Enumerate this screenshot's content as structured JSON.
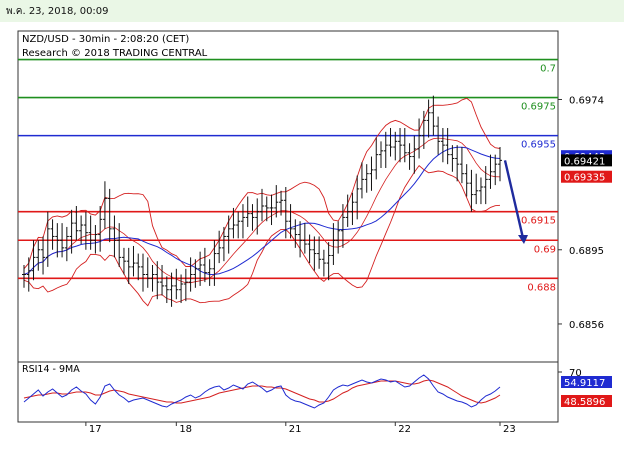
{
  "timestamp": "พ.ค. 23, 2018, 00:09",
  "chart_data": {
    "type": "line",
    "title": "NZD/USD - 30min - 2:08:20 (CET)",
    "subtitle": "Research © 2018 TRADING CENTRAL",
    "x_tick_labels": [
      "17",
      "18",
      "21",
      "22",
      "23"
    ],
    "y_tick_labels": [
      "0.6974",
      "0.6895",
      "0.6856"
    ],
    "ylim": [
      0.6836,
      0.701
    ],
    "levels": [
      {
        "label": "0.7",
        "value": 0.6995,
        "color": "#1f8f1f"
      },
      {
        "label": "0.6975",
        "value": 0.6975,
        "color": "#1f8f1f"
      },
      {
        "label": "0.6955",
        "value": 0.6955,
        "color": "#1f2bd1"
      },
      {
        "label": "0.6915",
        "value": 0.6915,
        "color": "#e01818"
      },
      {
        "label": "0.69",
        "value": 0.69,
        "color": "#e01818"
      },
      {
        "label": "0.688",
        "value": 0.688,
        "color": "#e01818"
      }
    ],
    "price_tags": [
      {
        "label": "0.69443",
        "color": "#1f2bd1"
      },
      {
        "label": "0.69421",
        "color": "#000000"
      },
      {
        "label": "0.69335",
        "color": "#e01818"
      }
    ],
    "price_series": [
      0.6882,
      0.6884,
      0.6891,
      0.6895,
      0.6891,
      0.6906,
      0.6902,
      0.69,
      0.6896,
      0.6902,
      0.6909,
      0.6905,
      0.6908,
      0.6904,
      0.69,
      0.6903,
      0.6911,
      0.6922,
      0.6906,
      0.69,
      0.6891,
      0.6889,
      0.6886,
      0.6888,
      0.6886,
      0.6882,
      0.688,
      0.6882,
      0.6878,
      0.6876,
      0.6874,
      0.6876,
      0.6874,
      0.6877,
      0.6878,
      0.6882,
      0.6885,
      0.6887,
      0.6883,
      0.6885,
      0.6893,
      0.6896,
      0.6902,
      0.6906,
      0.6908,
      0.691,
      0.6912,
      0.6914,
      0.6912,
      0.6915,
      0.6918,
      0.6917,
      0.6917,
      0.692,
      0.6921,
      0.691,
      0.6906,
      0.6903,
      0.69,
      0.6898,
      0.6895,
      0.6893,
      0.689,
      0.6888,
      0.6892,
      0.69,
      0.6905,
      0.6912,
      0.6915,
      0.692,
      0.6927,
      0.6932,
      0.6935,
      0.6937,
      0.6945,
      0.6947,
      0.695,
      0.6949,
      0.6952,
      0.695,
      0.6946,
      0.6944,
      0.6948,
      0.6955,
      0.6963,
      0.6967,
      0.696,
      0.6952,
      0.695,
      0.6945,
      0.6943,
      0.694,
      0.6935,
      0.693,
      0.6924,
      0.6926,
      0.6928,
      0.6932,
      0.6936,
      0.694,
      0.6942
    ],
    "forecast_path": [
      0.6942,
      0.6898
    ],
    "rsi": {
      "label": "RSI14 - 9MA",
      "ylim": [
        20,
        80
      ],
      "tick_labels": [
        "70"
      ],
      "tags": [
        {
          "label": "54.9117",
          "color": "#1f2bd1"
        },
        {
          "label": "48.5896",
          "color": "#e01818"
        }
      ],
      "rsi_series": [
        40,
        44,
        48,
        52,
        46,
        50,
        53,
        49,
        45,
        47,
        52,
        55,
        51,
        48,
        42,
        38,
        45,
        56,
        58,
        52,
        47,
        44,
        40,
        42,
        43,
        44,
        42,
        40,
        38,
        36,
        35,
        38,
        40,
        42,
        45,
        47,
        44,
        46,
        50,
        53,
        55,
        56,
        52,
        54,
        57,
        55,
        53,
        58,
        60,
        57,
        54,
        50,
        52,
        55,
        56,
        47,
        43,
        41,
        40,
        38,
        36,
        34,
        37,
        39,
        45,
        52,
        55,
        57,
        56,
        58,
        60,
        62,
        60,
        59,
        61,
        63,
        62,
        60,
        61,
        58,
        55,
        56,
        60,
        64,
        67,
        63,
        56,
        50,
        48,
        45,
        43,
        41,
        40,
        38,
        35,
        37,
        42,
        46,
        48,
        51,
        55
      ],
      "ma_series": [
        44,
        45,
        46,
        47,
        47,
        48,
        49,
        49,
        48,
        48,
        49,
        50,
        50,
        50,
        49,
        47,
        47,
        49,
        51,
        52,
        51,
        50,
        48,
        47,
        46,
        45,
        44,
        43,
        42,
        41,
        40,
        40,
        39,
        39,
        40,
        41,
        42,
        43,
        44,
        45,
        47,
        49,
        50,
        51,
        52,
        53,
        54,
        55,
        56,
        56,
        56,
        55,
        55,
        54,
        54,
        53,
        51,
        49,
        47,
        45,
        43,
        42,
        40,
        40,
        41,
        43,
        46,
        49,
        51,
        54,
        56,
        57,
        58,
        59,
        60,
        61,
        61,
        61,
        61,
        60,
        59,
        58,
        58,
        59,
        61,
        62,
        61,
        59,
        57,
        55,
        52,
        49,
        46,
        44,
        42,
        40,
        39,
        40,
        42,
        44,
        47
      ]
    }
  }
}
